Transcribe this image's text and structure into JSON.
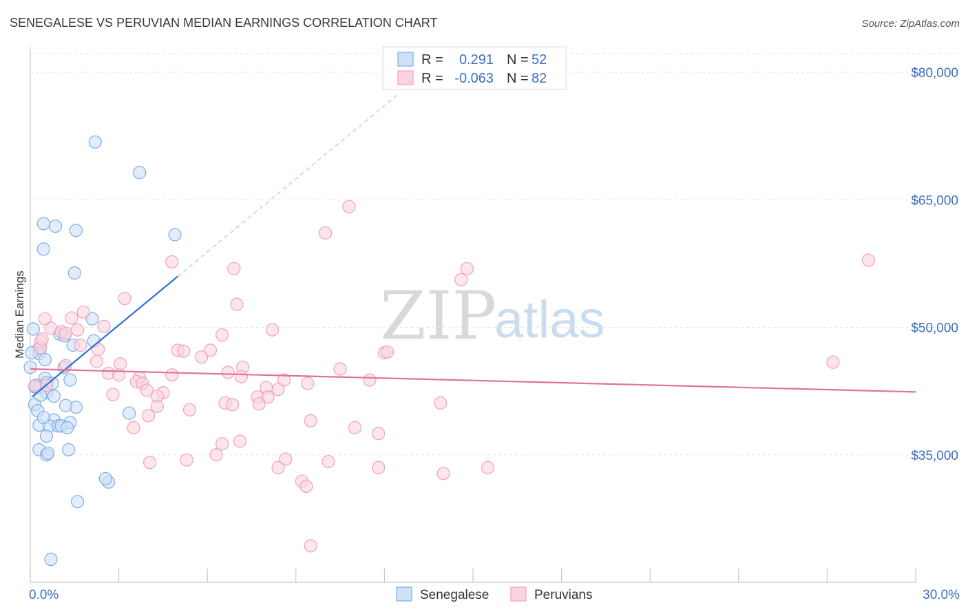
{
  "chart_data": {
    "type": "scatter",
    "title": "SENEGALESE VS PERUVIAN MEDIAN EARNINGS CORRELATION CHART",
    "source": "Source: ZipAtlas.com",
    "ylabel": "Median Earnings",
    "xlim": [
      0,
      30
    ],
    "ylim": [
      20000,
      83000
    ],
    "yticks": [
      {
        "value": 35000,
        "label": "$35,000"
      },
      {
        "value": 50000,
        "label": "$50,000"
      },
      {
        "value": 65000,
        "label": "$65,000"
      },
      {
        "value": 80000,
        "label": "$80,000"
      }
    ],
    "xtick_labels": {
      "min": "0.0%",
      "max": "30.0%"
    },
    "watermark": {
      "zip": "ZIP",
      "atlas": "atlas"
    },
    "legend": {
      "r_label": "R =",
      "n_label": "N =",
      "entries": [
        {
          "r": "0.291",
          "n": "52"
        },
        {
          "r": "-0.063",
          "n": "82"
        }
      ]
    },
    "series": [
      {
        "name": "Senegalese",
        "color": "#7aaee8",
        "trend": {
          "x0": 0.05,
          "y0": 41800,
          "x1": 5.0,
          "y1": 56000,
          "dash_to_x": 12.5
        },
        "points": [
          [
            2.2,
            71800
          ],
          [
            3.7,
            68200
          ],
          [
            0.45,
            62200
          ],
          [
            0.85,
            61900
          ],
          [
            1.55,
            61400
          ],
          [
            4.9,
            60900
          ],
          [
            0.45,
            59200
          ],
          [
            1.5,
            56400
          ],
          [
            0.1,
            49800
          ],
          [
            2.1,
            51000
          ],
          [
            1.45,
            47900
          ],
          [
            2.15,
            48400
          ],
          [
            0.3,
            47500
          ],
          [
            1.0,
            49200
          ],
          [
            1.15,
            49000
          ],
          [
            0.3,
            46900
          ],
          [
            0.5,
            46200
          ],
          [
            0.0,
            45300
          ],
          [
            1.15,
            45300
          ],
          [
            0.5,
            44000
          ],
          [
            0.55,
            43500
          ],
          [
            1.35,
            43800
          ],
          [
            0.15,
            43000
          ],
          [
            0.3,
            42900
          ],
          [
            0.55,
            42300
          ],
          [
            0.8,
            41900
          ],
          [
            0.15,
            40900
          ],
          [
            1.55,
            40600
          ],
          [
            3.35,
            39900
          ],
          [
            0.8,
            39100
          ],
          [
            1.35,
            38800
          ],
          [
            0.3,
            38500
          ],
          [
            0.65,
            38400
          ],
          [
            0.95,
            38400
          ],
          [
            1.05,
            38400
          ],
          [
            1.25,
            38200
          ],
          [
            0.55,
            37200
          ],
          [
            0.3,
            35600
          ],
          [
            1.3,
            35600
          ],
          [
            0.55,
            35000
          ],
          [
            0.6,
            35200
          ],
          [
            2.65,
            31800
          ],
          [
            2.55,
            32200
          ],
          [
            1.6,
            29500
          ],
          [
            0.7,
            22700
          ],
          [
            0.25,
            40200
          ],
          [
            0.75,
            43400
          ],
          [
            0.2,
            43200
          ],
          [
            0.05,
            47000
          ],
          [
            1.2,
            40800
          ],
          [
            0.35,
            42000
          ],
          [
            0.45,
            39400
          ]
        ]
      },
      {
        "name": "Peruvians",
        "color": "#f0a0bc",
        "trend": {
          "x0": 0.0,
          "y0": 45100,
          "x1": 30.0,
          "y1": 42400
        },
        "points": [
          [
            10.8,
            64200
          ],
          [
            10.0,
            61100
          ],
          [
            28.4,
            57900
          ],
          [
            4.8,
            57700
          ],
          [
            6.9,
            56900
          ],
          [
            14.8,
            56900
          ],
          [
            14.6,
            55600
          ],
          [
            3.2,
            53400
          ],
          [
            7.0,
            52700
          ],
          [
            1.8,
            51800
          ],
          [
            0.5,
            51000
          ],
          [
            1.4,
            51100
          ],
          [
            2.5,
            50100
          ],
          [
            0.7,
            49900
          ],
          [
            8.2,
            49700
          ],
          [
            1.05,
            49500
          ],
          [
            1.2,
            49300
          ],
          [
            6.5,
            49100
          ],
          [
            0.35,
            48300
          ],
          [
            0.35,
            47600
          ],
          [
            1.7,
            47900
          ],
          [
            2.3,
            47400
          ],
          [
            5.0,
            47300
          ],
          [
            5.2,
            47200
          ],
          [
            6.1,
            47300
          ],
          [
            5.8,
            46500
          ],
          [
            12.0,
            47000
          ],
          [
            12.1,
            47100
          ],
          [
            2.25,
            46000
          ],
          [
            3.05,
            45700
          ],
          [
            7.2,
            45300
          ],
          [
            10.5,
            45100
          ],
          [
            1.2,
            45500
          ],
          [
            2.65,
            44600
          ],
          [
            4.8,
            44400
          ],
          [
            3.0,
            44400
          ],
          [
            6.7,
            44700
          ],
          [
            7.15,
            44200
          ],
          [
            3.7,
            44100
          ],
          [
            3.6,
            43600
          ],
          [
            8.6,
            43800
          ],
          [
            11.5,
            43800
          ],
          [
            9.4,
            43400
          ],
          [
            3.8,
            43400
          ],
          [
            8.0,
            42900
          ],
          [
            8.4,
            42700
          ],
          [
            0.15,
            43100
          ],
          [
            0.55,
            43200
          ],
          [
            2.8,
            42100
          ],
          [
            4.5,
            42300
          ],
          [
            3.95,
            42600
          ],
          [
            7.7,
            41800
          ],
          [
            8.05,
            41800
          ],
          [
            4.3,
            41900
          ],
          [
            6.6,
            41100
          ],
          [
            6.85,
            40900
          ],
          [
            7.75,
            41000
          ],
          [
            13.9,
            41100
          ],
          [
            4.3,
            40700
          ],
          [
            5.4,
            40300
          ],
          [
            4.0,
            39600
          ],
          [
            9.5,
            39000
          ],
          [
            3.5,
            38200
          ],
          [
            11.0,
            38200
          ],
          [
            11.8,
            37500
          ],
          [
            7.1,
            36600
          ],
          [
            6.5,
            36300
          ],
          [
            6.3,
            35000
          ],
          [
            8.65,
            34500
          ],
          [
            4.05,
            34100
          ],
          [
            5.3,
            34400
          ],
          [
            8.4,
            33500
          ],
          [
            11.8,
            33500
          ],
          [
            15.5,
            33500
          ],
          [
            14.0,
            32800
          ],
          [
            9.2,
            31900
          ],
          [
            9.35,
            31300
          ],
          [
            9.5,
            24300
          ],
          [
            27.2,
            45900
          ],
          [
            0.4,
            48600
          ],
          [
            1.6,
            49700
          ],
          [
            10.1,
            34200
          ]
        ]
      }
    ]
  }
}
